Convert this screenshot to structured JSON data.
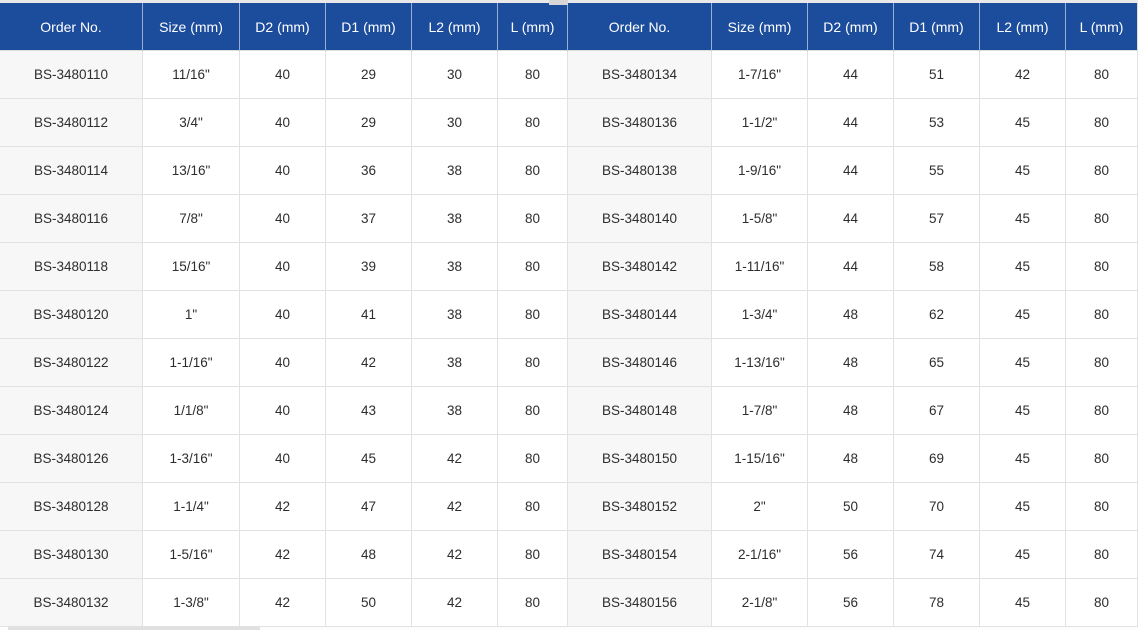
{
  "colors": {
    "header_bg": "#1c4c9c",
    "header_text": "#ffffff",
    "cell_border": "#e2e2e2",
    "order_column_bg": "#f7f7f7",
    "body_text": "#2d2d2d",
    "top_strip": "#e9e9e9"
  },
  "chart_data": {
    "type": "table",
    "title": "",
    "layout": "two side-by-side tables with identical columns",
    "columns": [
      "Order No.",
      "Size (mm)",
      "D2 (mm)",
      "D1 (mm)",
      "L2 (mm)",
      "L (mm)"
    ],
    "left_rows": [
      [
        "BS-3480110",
        "11/16\"",
        40,
        29,
        30,
        80
      ],
      [
        "BS-3480112",
        "3/4\"",
        40,
        29,
        30,
        80
      ],
      [
        "BS-3480114",
        "13/16\"",
        40,
        36,
        38,
        80
      ],
      [
        "BS-3480116",
        "7/8\"",
        40,
        37,
        38,
        80
      ],
      [
        "BS-3480118",
        "15/16\"",
        40,
        39,
        38,
        80
      ],
      [
        "BS-3480120",
        "1\"",
        40,
        41,
        38,
        80
      ],
      [
        "BS-3480122",
        "1-1/16\"",
        40,
        42,
        38,
        80
      ],
      [
        "BS-3480124",
        "1/1/8\"",
        40,
        43,
        38,
        80
      ],
      [
        "BS-3480126",
        "1-3/16\"",
        40,
        45,
        42,
        80
      ],
      [
        "BS-3480128",
        "1-1/4\"",
        42,
        47,
        42,
        80
      ],
      [
        "BS-3480130",
        "1-5/16\"",
        42,
        48,
        42,
        80
      ],
      [
        "BS-3480132",
        "1-3/8\"",
        42,
        50,
        42,
        80
      ]
    ],
    "right_rows": [
      [
        "BS-3480134",
        "1-7/16\"",
        44,
        51,
        42,
        80
      ],
      [
        "BS-3480136",
        "1-1/2\"",
        44,
        53,
        45,
        80
      ],
      [
        "BS-3480138",
        "1-9/16\"",
        44,
        55,
        45,
        80
      ],
      [
        "BS-3480140",
        "1-5/8\"",
        44,
        57,
        45,
        80
      ],
      [
        "BS-3480142",
        "1-11/16\"",
        44,
        58,
        45,
        80
      ],
      [
        "BS-3480144",
        "1-3/4\"",
        48,
        62,
        45,
        80
      ],
      [
        "BS-3480146",
        "1-13/16\"",
        48,
        65,
        45,
        80
      ],
      [
        "BS-3480148",
        "1-7/8\"",
        48,
        67,
        45,
        80
      ],
      [
        "BS-3480150",
        "1-15/16\"",
        48,
        69,
        45,
        80
      ],
      [
        "BS-3480152",
        "2\"",
        50,
        70,
        45,
        80
      ],
      [
        "BS-3480154",
        "2-1/16\"",
        56,
        74,
        45,
        80
      ],
      [
        "BS-3480156",
        "2-1/8\"",
        56,
        78,
        45,
        80
      ]
    ]
  }
}
